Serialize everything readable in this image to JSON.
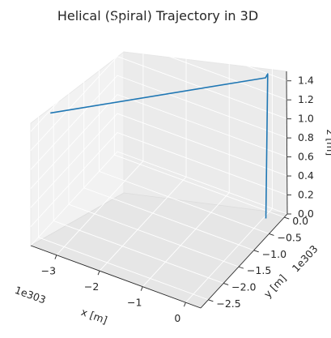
{
  "chart_data": {
    "type": "line",
    "projection": "3d",
    "title": "Helical (Spiral) Trajectory in 3D",
    "xlabel": "x [m]",
    "ylabel": "y [m]",
    "zlabel": "z [m]",
    "x_offset_text": "1e303",
    "y_offset_text": "1e303",
    "x_ticks": [
      "−3",
      "−2",
      "−1",
      "0"
    ],
    "y_ticks": [
      "0.0",
      "−0.5",
      "−1.0",
      "−1.5",
      "−2.0",
      "−2.5"
    ],
    "z_ticks": [
      "0.0",
      "0.2",
      "0.4",
      "0.6",
      "0.8",
      "1.0",
      "1.2",
      "1.4"
    ],
    "xlim": [
      -3.6,
      0.35
    ],
    "ylim": [
      -2.75,
      0.1
    ],
    "zlim": [
      0.0,
      1.5
    ],
    "grid": true,
    "legend": "none",
    "line_color": "#1f77b4",
    "series": [
      {
        "x": [
          0.05,
          0.05,
          0.0,
          -3.25
        ],
        "y": [
          -0.18,
          -0.12,
          -0.12,
          -2.6
        ],
        "z": [
          0.0,
          1.5,
          1.45,
          1.4
        ],
        "note_values_scale": "x and y in units of 1e303 m"
      }
    ]
  }
}
